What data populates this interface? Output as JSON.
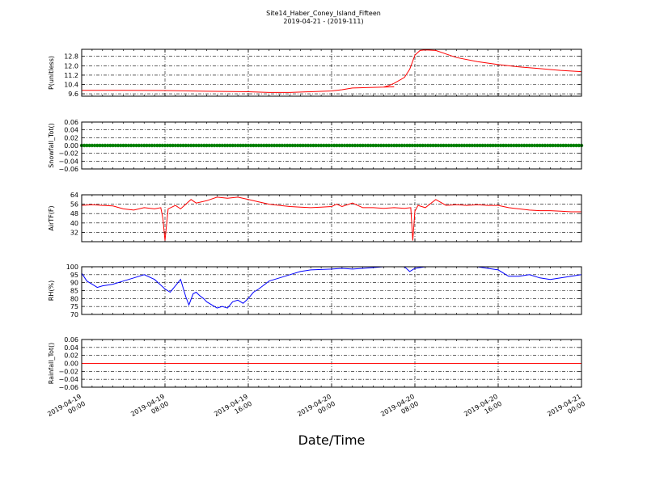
{
  "chart_data": {
    "type": "line",
    "title": "Site14_Haber_Coney_Island_Fifteen",
    "subtitle": "2019-04-21 - (2019-111)",
    "xlabel": "Date/Time",
    "x_ticks": [
      {
        "hour": 0,
        "line1": "2019-04-19",
        "line2": "00:00"
      },
      {
        "hour": 8,
        "line1": "2019-04-19",
        "line2": "08:00"
      },
      {
        "hour": 16,
        "line1": "2019-04-19",
        "line2": "16:00"
      },
      {
        "hour": 24,
        "line1": "2019-04-20",
        "line2": "00:00"
      },
      {
        "hour": 32,
        "line1": "2019-04-20",
        "line2": "08:00"
      },
      {
        "hour": 40,
        "line1": "2019-04-20",
        "line2": "16:00"
      },
      {
        "hour": 48,
        "line1": "2019-04-21",
        "line2": "00:00"
      }
    ],
    "xlim": [
      0,
      48
    ],
    "grid": true,
    "panels": [
      {
        "ylabel": "P(unitless)",
        "color": "#ff0000",
        "ylim": [
          9.4,
          13.4
        ],
        "yticks": [
          "9.6",
          "10.4",
          "11.2",
          "12.0",
          "12.8"
        ],
        "ytick_values": [
          9.6,
          10.4,
          11.2,
          12.0,
          12.8
        ],
        "marker": "none",
        "x": [
          0,
          4,
          8,
          12,
          16,
          18,
          20,
          24,
          25,
          26,
          28,
          30,
          29,
          29.5,
          30,
          31,
          31.5,
          32,
          32.5,
          33,
          34,
          35,
          36,
          38,
          40,
          42,
          44,
          46,
          48
        ],
        "y": [
          9.9,
          9.9,
          9.88,
          9.82,
          9.78,
          9.72,
          9.72,
          9.85,
          9.95,
          10.1,
          10.15,
          10.2,
          10.18,
          10.3,
          10.5,
          11.0,
          11.7,
          12.9,
          13.3,
          13.35,
          13.3,
          13.0,
          12.7,
          12.35,
          12.1,
          11.9,
          11.75,
          11.6,
          11.5
        ]
      },
      {
        "ylabel": "Snowfall_Tot()",
        "color": "#008000",
        "ylim": [
          -0.06,
          0.06
        ],
        "yticks": [
          "−0.06",
          "−0.04",
          "−0.02",
          "0.00",
          "0.02",
          "0.04",
          "0.06"
        ],
        "ytick_values": [
          -0.06,
          -0.04,
          -0.02,
          0.0,
          0.02,
          0.04,
          0.06
        ],
        "marker": "dots",
        "x": [
          0,
          48
        ],
        "y": [
          0,
          0
        ]
      },
      {
        "ylabel": "AirTF(F)",
        "color": "#ff0000",
        "ylim": [
          24,
          64
        ],
        "yticks": [
          "32",
          "40",
          "48",
          "56",
          "64"
        ],
        "ytick_values": [
          32,
          40,
          48,
          56,
          64
        ],
        "marker": "none",
        "x": [
          0,
          1,
          2,
          3,
          4,
          5,
          6,
          7,
          7.6,
          7.8,
          8.0,
          8.3,
          9,
          9.5,
          10,
          10.5,
          11,
          12,
          13,
          14,
          15,
          16,
          17,
          18,
          19,
          20,
          21,
          22,
          23,
          24,
          24.5,
          25,
          26,
          27,
          28,
          29,
          30,
          31,
          31.6,
          31.8,
          32.0,
          32.3,
          33,
          34,
          35,
          36,
          37,
          38,
          39,
          40,
          41,
          42,
          43,
          44,
          45,
          46,
          47,
          48
        ],
        "y": [
          55,
          55.5,
          55,
          54.5,
          52,
          51,
          53,
          52,
          53,
          44,
          25,
          52,
          55,
          52,
          56,
          60,
          57,
          59,
          62,
          61,
          62,
          60,
          58,
          56,
          55,
          54,
          53.5,
          53,
          53.5,
          54,
          56,
          54,
          57,
          53,
          53,
          52.5,
          53,
          52.5,
          53,
          25,
          50,
          55,
          53,
          60,
          55,
          55.5,
          55,
          55.5,
          55,
          55,
          53,
          52,
          51,
          50.5,
          50.5,
          50,
          49.5,
          49.5
        ]
      },
      {
        "ylabel": "RH(%)",
        "color": "#0000ff",
        "ylim": [
          70,
          100
        ],
        "yticks": [
          "70",
          "75",
          "80",
          "85",
          "90",
          "95",
          "100"
        ],
        "ytick_values": [
          70,
          75,
          80,
          85,
          90,
          95,
          100
        ],
        "marker": "none",
        "x": [
          0,
          0.5,
          1,
          1.5,
          2,
          3,
          4,
          5,
          6,
          7,
          7.5,
          8,
          8.5,
          9,
          9.5,
          10,
          10.3,
          10.7,
          11,
          11.3,
          11.7,
          12,
          12.5,
          13,
          13.5,
          14,
          14.5,
          15,
          15.5,
          16,
          16.5,
          17,
          18,
          19,
          20,
          21,
          22,
          24,
          25,
          26,
          27,
          28,
          29,
          30,
          31,
          31.5,
          32,
          33,
          34,
          35,
          36,
          37,
          38,
          39,
          40,
          41,
          42,
          43,
          44,
          45,
          46,
          47,
          48
        ],
        "y": [
          96,
          91,
          89,
          87,
          88,
          89,
          91,
          93,
          95,
          92,
          89,
          86,
          84,
          88,
          92,
          81,
          76,
          83,
          84,
          82,
          80,
          78,
          76,
          74,
          75,
          74,
          78,
          79,
          77,
          80,
          84,
          86,
          91,
          93,
          95,
          97,
          98,
          98.5,
          99,
          98.5,
          99,
          99.5,
          100,
          100,
          100,
          97,
          99,
          100,
          100,
          100,
          100,
          100,
          100,
          99,
          98,
          94,
          94,
          95,
          93,
          92,
          93,
          94,
          95
        ]
      },
      {
        "ylabel": "Rainfall_Tot()",
        "color": "#ff0000",
        "ylim": [
          -0.06,
          0.06
        ],
        "yticks": [
          "−0.06",
          "−0.04",
          "−0.02",
          "0.00",
          "0.02",
          "0.04",
          "0.06"
        ],
        "ytick_values": [
          -0.06,
          -0.04,
          -0.02,
          0.0,
          0.02,
          0.04,
          0.06
        ],
        "marker": "none",
        "x": [
          0,
          48
        ],
        "y": [
          0,
          0
        ]
      }
    ]
  }
}
